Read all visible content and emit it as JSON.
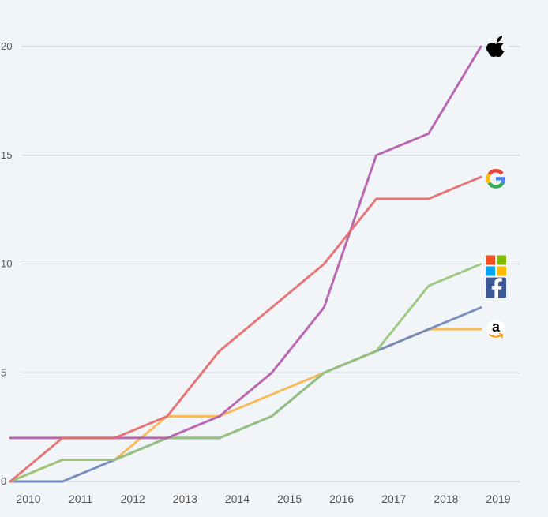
{
  "chart_data": {
    "type": "line",
    "title": "",
    "xlabel": "",
    "ylabel": "",
    "x": [
      2010,
      2011,
      2012,
      2013,
      2014,
      2015,
      2016,
      2017,
      2018,
      2019
    ],
    "x_tick_labels": [
      "2010",
      "2011",
      "2012",
      "2013",
      "2014",
      "2015",
      "2016",
      "2017",
      "2018",
      "2019"
    ],
    "y_ticks": [
      0,
      5,
      10,
      15,
      20
    ],
    "ylim": [
      0,
      20
    ],
    "grid": "horizontal",
    "legend": "icons at line ends (right)",
    "series": [
      {
        "icon": "apple-logo-icon",
        "color": "#b45bad",
        "values": [
          2,
          2,
          2,
          2,
          3,
          5,
          8,
          15,
          16,
          20
        ]
      },
      {
        "icon": "google-logo-icon",
        "color": "#e66a6e",
        "values": [
          0,
          2,
          2,
          3,
          6,
          8,
          10,
          13,
          13,
          14
        ]
      },
      {
        "icon": "microsoft-logo-icon",
        "color": "#97c47a",
        "values": [
          0,
          1,
          1,
          2,
          2,
          3,
          5,
          6,
          9,
          10
        ]
      },
      {
        "icon": "facebook-logo-icon",
        "color": "#6c87bd",
        "values": [
          0,
          0,
          1,
          2,
          2,
          3,
          5,
          6,
          7,
          8
        ]
      },
      {
        "icon": "amazon-logo-icon",
        "color": "#f7b551",
        "values": [
          0,
          1,
          1,
          3,
          3,
          4,
          5,
          6,
          7,
          7
        ]
      }
    ]
  }
}
